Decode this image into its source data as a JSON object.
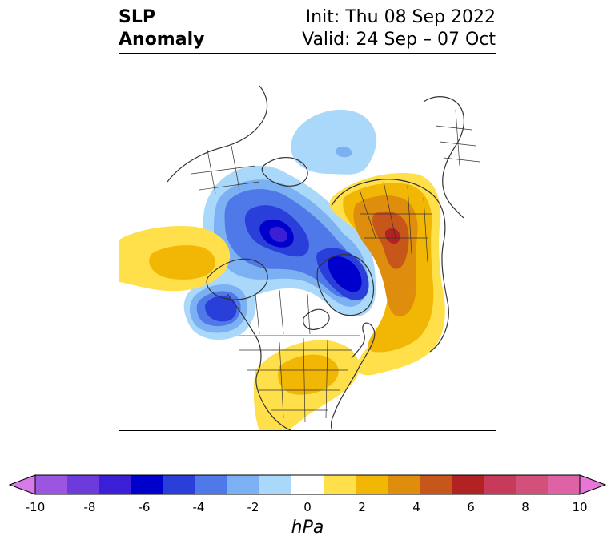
{
  "title": {
    "left_line1": "SLP",
    "left_line2": "Anomaly",
    "right_line1": "Init: Thu 08 Sep 2022",
    "right_line2": "Valid: 24 Sep – 07 Oct"
  },
  "colorbar": {
    "unit": "hPa",
    "ticks": [
      "-10",
      "-8",
      "-6",
      "-4",
      "-2",
      "0",
      "2",
      "4",
      "6",
      "8",
      "10"
    ],
    "colors": [
      "#d67be8",
      "#9c55e0",
      "#6d3bdc",
      "#3b1fd6",
      "#0000cc",
      "#2a3fd9",
      "#4f78e8",
      "#7bb0f2",
      "#aad8fa",
      "#ffffff",
      "#ffe04a",
      "#f2b705",
      "#de8d0c",
      "#c7561a",
      "#b22222",
      "#c73a5a",
      "#d2507a",
      "#dd62a6",
      "#e876d6"
    ]
  },
  "map": {
    "projection": "north-polar-stereographic",
    "colors": {
      "land_border": "#333333",
      "neg_light": "#aad8fa",
      "neg_mid": "#7bb0f2",
      "neg_strong": "#4f78e8",
      "neg_deep": "#2a3fd9",
      "neg_core": "#0000cc",
      "neg_center": "#3b1fd6",
      "pos_light": "#ffe04a",
      "pos_mid": "#f2b705",
      "pos_strong": "#de8d0c",
      "pos_deep": "#c7561a",
      "pos_core": "#b22222"
    }
  }
}
